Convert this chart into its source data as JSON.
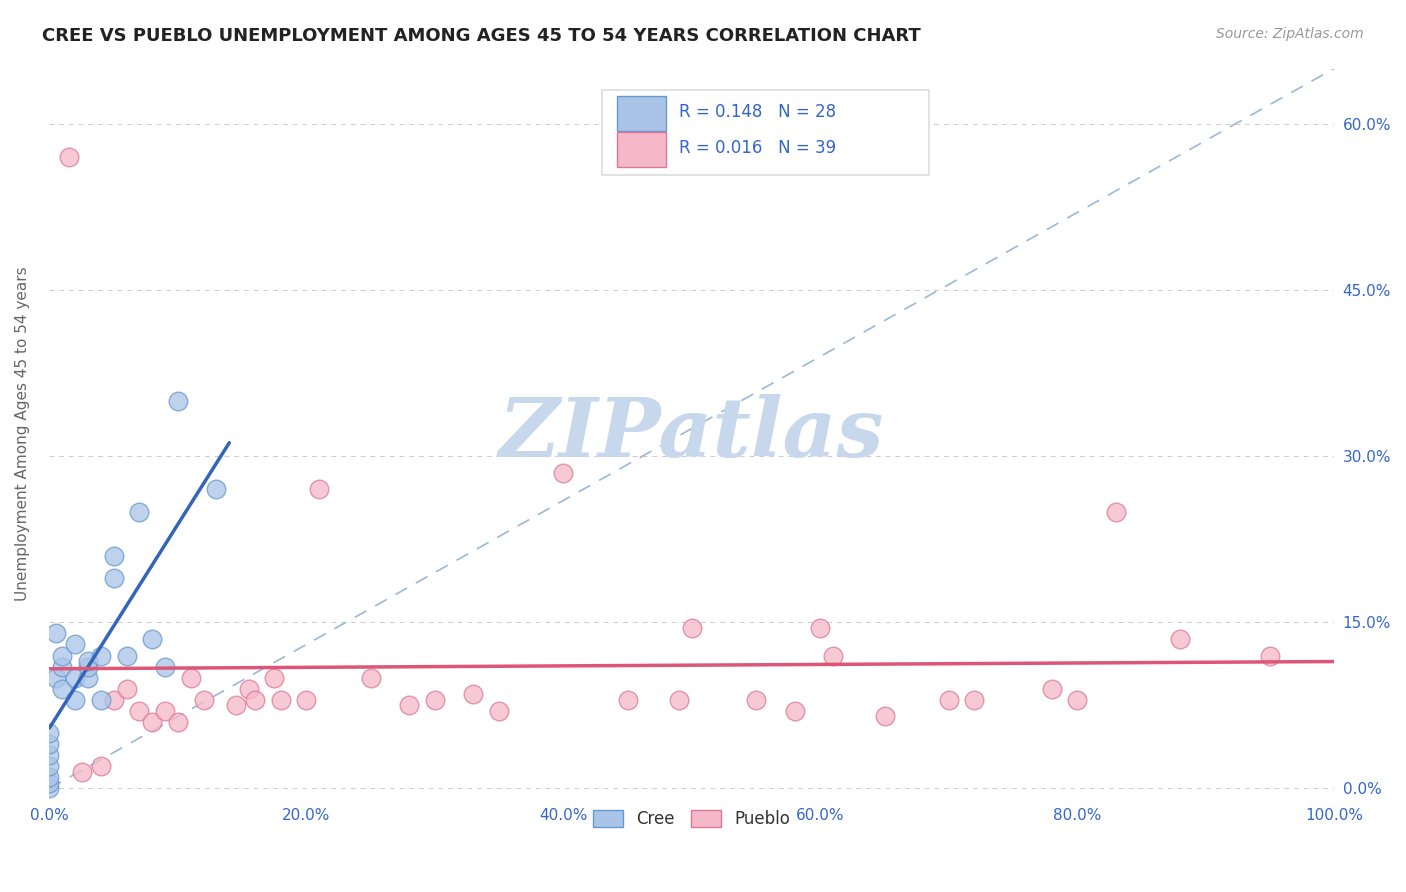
{
  "title": "CREE VS PUEBLO UNEMPLOYMENT AMONG AGES 45 TO 54 YEARS CORRELATION CHART",
  "source": "Source: ZipAtlas.com",
  "ylabel": "Unemployment Among Ages 45 to 54 years",
  "xlim": [
    0,
    1.0
  ],
  "ylim": [
    -0.01,
    0.65
  ],
  "xticks": [
    0.0,
    0.1,
    0.2,
    0.3,
    0.4,
    0.5,
    0.6,
    0.7,
    0.8,
    0.9,
    1.0
  ],
  "xticklabels": [
    "0.0%",
    "",
    "20.0%",
    "",
    "40.0%",
    "",
    "60.0%",
    "",
    "80.0%",
    "",
    "100.0%"
  ],
  "yticks": [
    0.0,
    0.15,
    0.3,
    0.45,
    0.6
  ],
  "yticklabels": [
    "0.0%",
    "15.0%",
    "30.0%",
    "45.0%",
    "60.0%"
  ],
  "cree_R": 0.148,
  "cree_N": 28,
  "pueblo_R": 0.016,
  "pueblo_N": 39,
  "cree_color": "#aac4e8",
  "cree_edge_color": "#6699cc",
  "cree_line_color": "#3366bb",
  "pueblo_color": "#f4b8c8",
  "pueblo_edge_color": "#dd7799",
  "pueblo_line_color": "#dd5577",
  "ref_line_color": "#99b8d8",
  "title_color": "#222222",
  "ylabel_color": "#666666",
  "tick_color": "#3366cc",
  "legend_text_color": "#3366cc",
  "legend_n_color": "#222222",
  "watermark": "ZIPatlas",
  "watermark_color": "#c8d8ec",
  "cree_x": [
    0.0,
    0.0,
    0.0,
    0.0,
    0.0,
    0.0,
    0.0,
    0.005,
    0.005,
    0.01,
    0.01,
    0.01,
    0.02,
    0.02,
    0.02,
    0.03,
    0.03,
    0.03,
    0.04,
    0.04,
    0.05,
    0.05,
    0.06,
    0.07,
    0.08,
    0.09,
    0.1,
    0.13
  ],
  "cree_y": [
    0.0,
    0.005,
    0.01,
    0.02,
    0.03,
    0.04,
    0.05,
    0.1,
    0.14,
    0.09,
    0.11,
    0.12,
    0.08,
    0.1,
    0.13,
    0.1,
    0.11,
    0.115,
    0.12,
    0.08,
    0.19,
    0.21,
    0.12,
    0.25,
    0.135,
    0.11,
    0.35,
    0.27
  ],
  "pueblo_x": [
    0.015,
    0.025,
    0.04,
    0.05,
    0.06,
    0.07,
    0.08,
    0.09,
    0.1,
    0.11,
    0.12,
    0.145,
    0.155,
    0.16,
    0.175,
    0.18,
    0.2,
    0.21,
    0.25,
    0.28,
    0.3,
    0.33,
    0.35,
    0.4,
    0.45,
    0.49,
    0.5,
    0.55,
    0.58,
    0.6,
    0.61,
    0.65,
    0.7,
    0.72,
    0.78,
    0.8,
    0.83,
    0.88,
    0.95
  ],
  "pueblo_y": [
    0.57,
    0.015,
    0.02,
    0.08,
    0.09,
    0.07,
    0.06,
    0.07,
    0.06,
    0.1,
    0.08,
    0.075,
    0.09,
    0.08,
    0.1,
    0.08,
    0.08,
    0.27,
    0.1,
    0.075,
    0.08,
    0.085,
    0.07,
    0.285,
    0.08,
    0.08,
    0.145,
    0.08,
    0.07,
    0.145,
    0.12,
    0.065,
    0.08,
    0.08,
    0.09,
    0.08,
    0.25,
    0.135,
    0.12
  ]
}
